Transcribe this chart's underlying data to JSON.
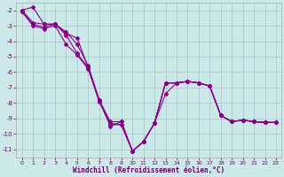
{
  "xlabel": "Windchill (Refroidissement éolien,°C)",
  "bg_color": "#cce8e8",
  "grid_color": "#aacccc",
  "line_color": "#880088",
  "marker": "D",
  "markersize": 2,
  "linewidth": 0.8,
  "xlim": [
    -0.5,
    23.5
  ],
  "ylim": [
    -11.5,
    -1.5
  ],
  "yticks": [
    -2,
    -3,
    -4,
    -5,
    -6,
    -7,
    -8,
    -9,
    -10,
    -11
  ],
  "xticks": [
    0,
    1,
    2,
    3,
    4,
    5,
    6,
    7,
    8,
    9,
    10,
    11,
    12,
    13,
    14,
    15,
    16,
    17,
    18,
    19,
    20,
    21,
    22,
    23
  ],
  "series": [
    {
      "x": [
        0,
        1,
        2,
        3,
        4,
        5,
        6,
        7,
        8,
        9,
        10,
        11,
        12,
        13,
        14,
        15,
        16,
        17,
        18,
        19,
        20,
        21,
        22,
        23
      ],
      "y": [
        -2.0,
        -1.8,
        -2.9,
        -2.9,
        -3.4,
        -4.2,
        -5.6,
        -7.8,
        -9.5,
        -9.2,
        -11.1,
        -10.5,
        -9.3,
        -7.4,
        -6.7,
        -6.6,
        -6.7,
        -6.9,
        -8.8,
        -9.2,
        -9.1,
        -9.2,
        -9.25,
        -9.25
      ]
    },
    {
      "x": [
        0,
        1,
        2,
        3,
        4,
        5,
        6,
        7,
        8,
        9,
        10,
        11,
        12,
        13,
        14,
        15,
        16,
        17,
        18,
        19,
        20,
        21,
        22,
        23
      ],
      "y": [
        -2.0,
        -2.8,
        -2.9,
        -2.9,
        -3.5,
        -3.8,
        -5.7,
        -7.8,
        -9.2,
        -9.2,
        -11.1,
        -10.5,
        -9.3,
        -6.7,
        -6.7,
        -6.6,
        -6.7,
        -6.9,
        -8.8,
        -9.2,
        -9.1,
        -9.2,
        -9.25,
        -9.25
      ]
    },
    {
      "x": [
        0,
        1,
        2,
        3,
        4,
        5,
        6,
        7,
        8,
        9,
        10,
        11,
        12,
        13,
        14,
        15,
        16,
        17,
        18,
        19,
        20,
        21,
        22,
        23
      ],
      "y": [
        -2.1,
        -2.9,
        -3.1,
        -2.9,
        -3.6,
        -4.8,
        -5.7,
        -7.9,
        -9.3,
        -9.4,
        -11.1,
        -10.5,
        -9.3,
        -6.7,
        -6.7,
        -6.6,
        -6.7,
        -6.9,
        -8.8,
        -9.2,
        -9.1,
        -9.2,
        -9.25,
        -9.25
      ]
    },
    {
      "x": [
        0,
        1,
        2,
        3,
        4,
        5,
        6,
        7,
        8,
        9,
        10,
        11,
        12,
        13,
        14,
        15,
        16,
        17,
        18,
        19,
        20,
        21,
        22,
        23
      ],
      "y": [
        -2.1,
        -3.0,
        -3.2,
        -3.0,
        -4.2,
        -4.9,
        -5.8,
        -7.9,
        -9.4,
        -9.4,
        -11.1,
        -10.5,
        -9.3,
        -6.7,
        -6.7,
        -6.6,
        -6.7,
        -6.9,
        -8.8,
        -9.2,
        -9.1,
        -9.2,
        -9.25,
        -9.25
      ]
    }
  ]
}
